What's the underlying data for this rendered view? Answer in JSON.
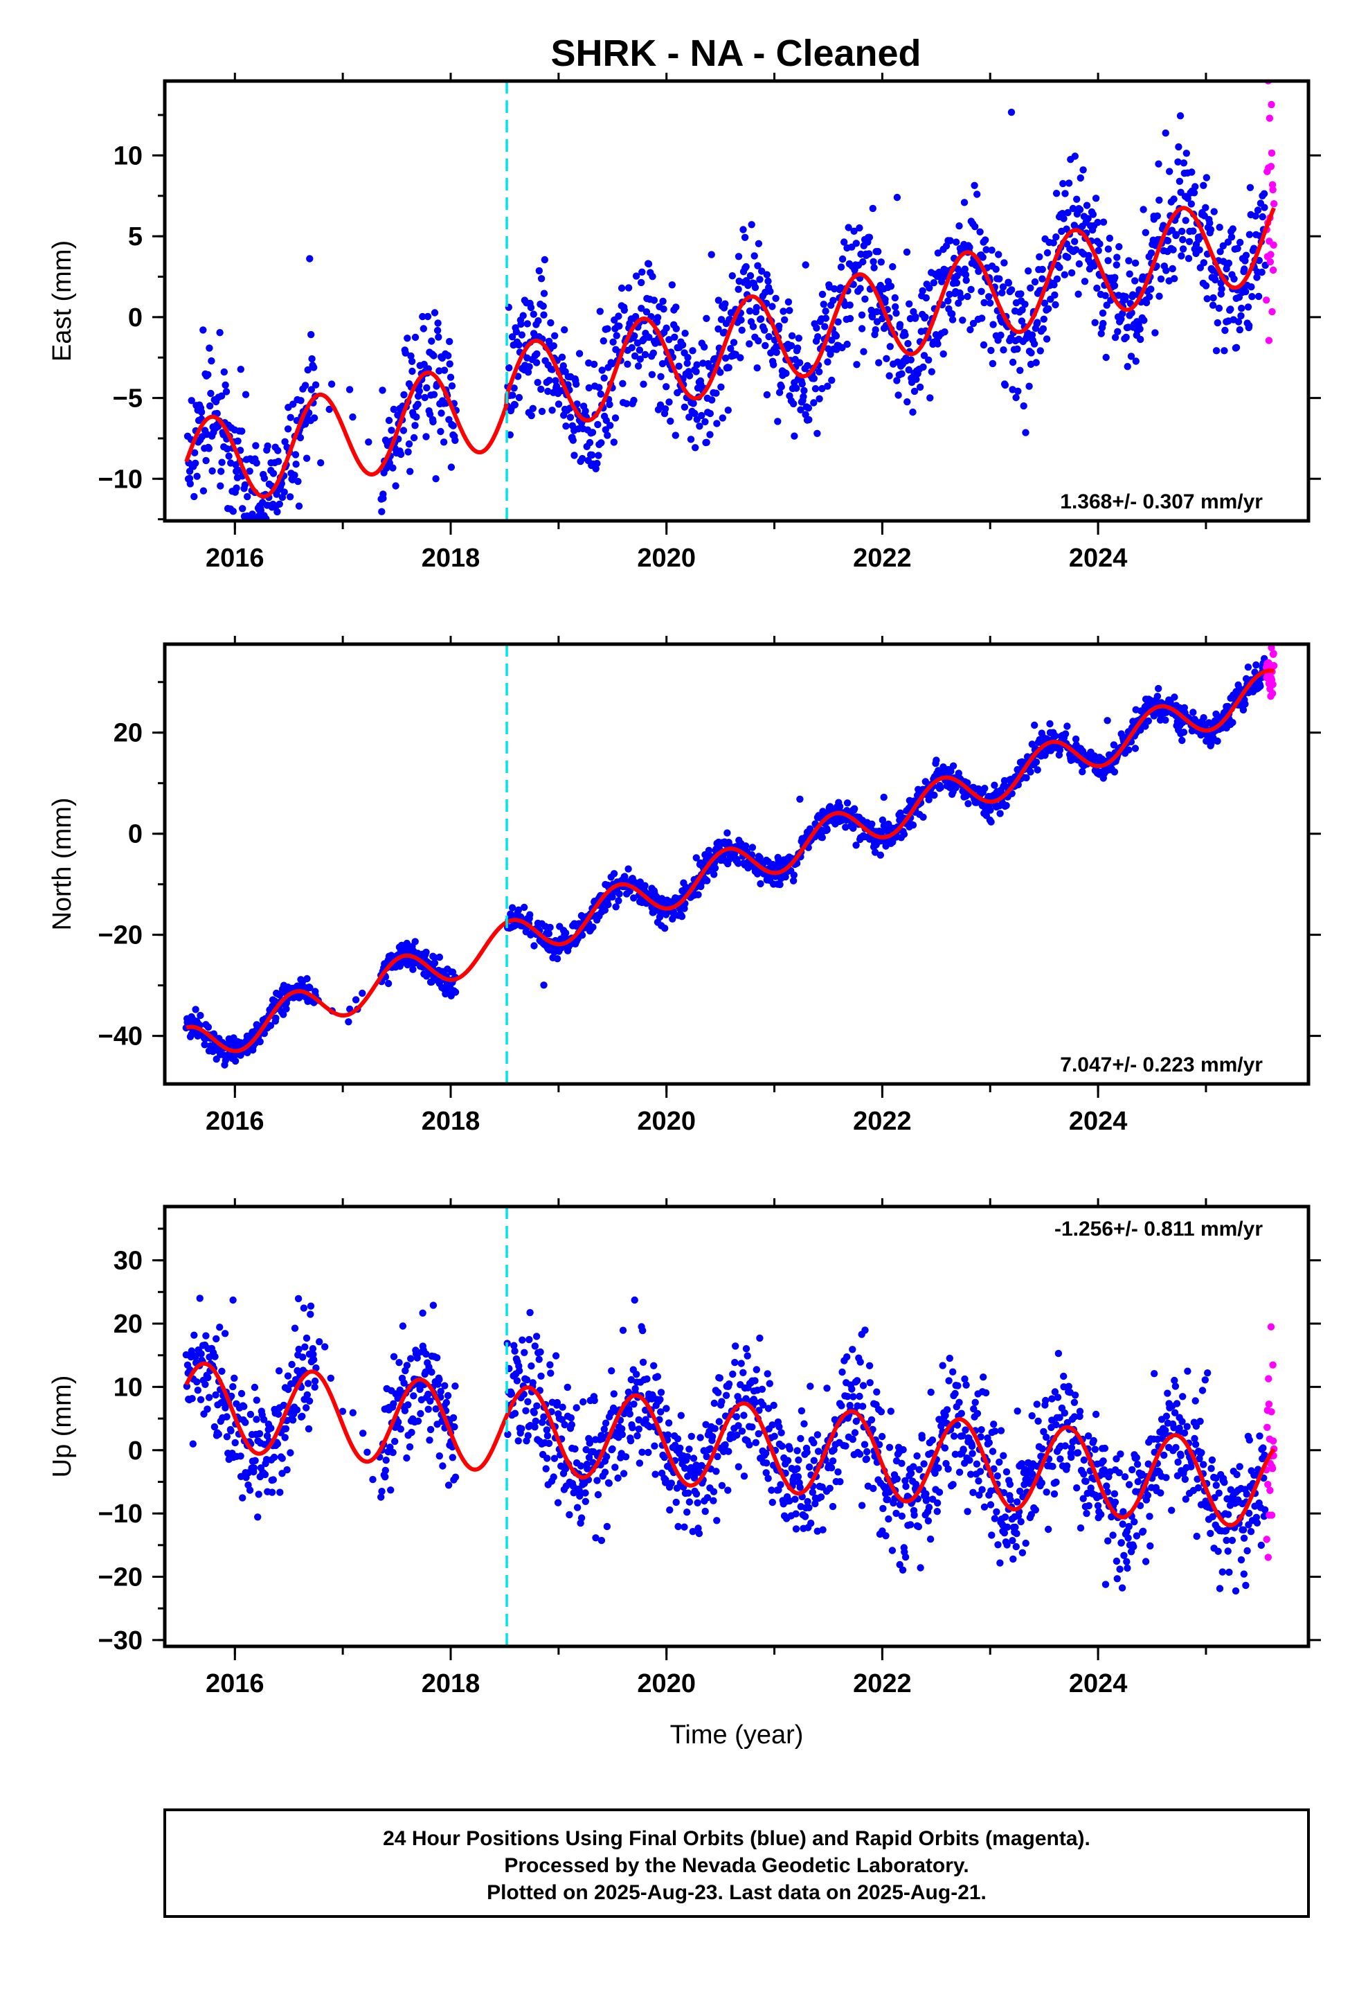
{
  "title": "SHRK  - NA - Cleaned",
  "colors": {
    "final_orbits": "#0000ff",
    "rapid_orbits": "#ff00ff",
    "model": "#ff0000",
    "event_line": "#00e5e5",
    "frame": "#000000"
  },
  "footer": {
    "line1": "24 Hour Positions Using Final Orbits (blue) and Rapid Orbits (magenta).",
    "line2": "Processed by the Nevada Geodetic Laboratory.",
    "line3": "Plotted on 2025-Aug-23. Last data on 2025-Aug-21."
  },
  "chart_data": [
    {
      "type": "scatter",
      "ylabel": "East (mm)",
      "xlabel": "",
      "rate_text": "1.368+/- 0.307 mm/yr",
      "xlim": [
        2015.35,
        2025.95
      ],
      "ylim": [
        -12.6,
        14.6
      ],
      "yticks": [
        -10,
        -5,
        0,
        5,
        10
      ],
      "xticks": [
        2016,
        2018,
        2020,
        2022,
        2024
      ],
      "event_line_x": 2018.52,
      "data_gap": [
        2018.05,
        2018.52
      ],
      "model": {
        "type": "line",
        "offset_at_2020": -2.6,
        "rate": 1.368,
        "annual_amplitude": 2.8,
        "peak_phase": 0.78,
        "step_at_event": -0.6
      },
      "final_orbits": {
        "start": 2015.55,
        "end": 2025.55,
        "scatter": 2.0,
        "sample_step": 0.0055
      },
      "rapid_orbits": {
        "start": 2025.56,
        "end": 2025.63
      }
    },
    {
      "type": "scatter",
      "ylabel": "North (mm)",
      "xlabel": "",
      "rate_text": "7.047+/- 0.223 mm/yr",
      "xlim": [
        2015.35,
        2025.95
      ],
      "ylim": [
        -49.5,
        37.5
      ],
      "yticks": [
        -40,
        -20,
        0,
        20
      ],
      "xticks": [
        2016,
        2018,
        2020,
        2022,
        2024
      ],
      "event_line_x": 2018.52,
      "data_gap": [
        2018.05,
        2018.52
      ],
      "model": {
        "type": "line",
        "offset_at_2020": -11.0,
        "rate": 7.047,
        "annual_amplitude": 4.0,
        "peak_phase": 0.55,
        "step_at_event": 0.0
      },
      "final_orbits": {
        "start": 2015.55,
        "end": 2025.55,
        "scatter": 1.4,
        "sample_step": 0.0055
      },
      "rapid_orbits": {
        "start": 2025.56,
        "end": 2025.63
      }
    },
    {
      "type": "scatter",
      "ylabel": "Up (mm)",
      "xlabel": "Time (year)",
      "rate_text": "-1.256+/- 0.811 mm/yr",
      "xlim": [
        2015.35,
        2025.95
      ],
      "ylim": [
        -31.0,
        38.5
      ],
      "yticks": [
        -30,
        -20,
        -10,
        0,
        10,
        20,
        30
      ],
      "xticks": [
        2016,
        2018,
        2020,
        2022,
        2024
      ],
      "event_line_x": 2018.52,
      "data_gap": [
        2018.05,
        2018.52
      ],
      "model": {
        "type": "line",
        "offset_at_2020": 1.5,
        "rate": -1.256,
        "annual_amplitude": 6.8,
        "peak_phase": 0.72,
        "step_at_event": 0.0
      },
      "final_orbits": {
        "start": 2015.55,
        "end": 2025.55,
        "scatter": 4.8,
        "sample_step": 0.0055
      },
      "rapid_orbits": {
        "start": 2025.56,
        "end": 2025.63
      }
    }
  ]
}
